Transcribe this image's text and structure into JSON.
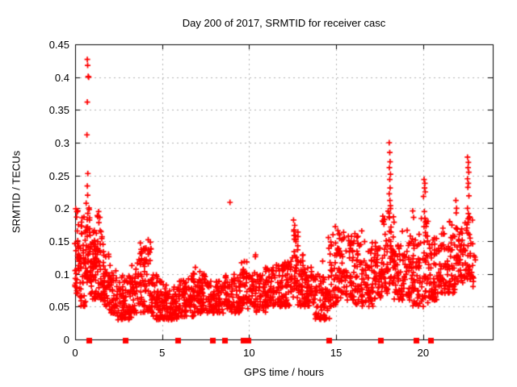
{
  "window": {
    "background": "#ffffff",
    "text_color": "#000000"
  },
  "chart_data": {
    "type": "scatter",
    "title": "Day 200 of 2017, SRMTID for receiver casc",
    "xlabel": "GPS time / hours",
    "ylabel": "SRMTID / TECUs",
    "xlim": [
      0,
      24
    ],
    "ylim": [
      0,
      0.45
    ],
    "xticks": [
      {
        "v": 0,
        "label": "0"
      },
      {
        "v": 5,
        "label": "5"
      },
      {
        "v": 10,
        "label": "10"
      },
      {
        "v": 15,
        "label": "15"
      },
      {
        "v": 20,
        "label": "20"
      }
    ],
    "yticks": [
      {
        "v": 0,
        "label": "0"
      },
      {
        "v": 0.05,
        "label": "0.05"
      },
      {
        "v": 0.1,
        "label": "0.1"
      },
      {
        "v": 0.15,
        "label": "0.15"
      },
      {
        "v": 0.2,
        "label": "0.2"
      },
      {
        "v": 0.25,
        "label": "0.25"
      },
      {
        "v": 0.3,
        "label": "0.3"
      },
      {
        "v": 0.35,
        "label": "0.35"
      },
      {
        "v": 0.4,
        "label": "0.4"
      },
      {
        "v": 0.45,
        "label": "0.45"
      }
    ],
    "grid": true,
    "grid_color": "#b0b0b0",
    "border_color": "#000000",
    "legend": "none",
    "marker": {
      "shape": "plus",
      "color": "#ff0000",
      "size": 7
    },
    "zero_marker": {
      "shape": "filled-square",
      "color": "#ff0000",
      "size": 7
    },
    "zero_points_x": [
      0.8,
      2.9,
      5.9,
      7.9,
      8.6,
      9.7,
      9.95,
      14.6,
      17.55,
      19.6,
      20.45
    ],
    "density_bins": [
      [
        0.0,
        0.3,
        0.07,
        0.2,
        42
      ],
      [
        0.3,
        0.6,
        0.05,
        0.19,
        38
      ],
      [
        0.6,
        0.9,
        0.08,
        0.21,
        45
      ],
      [
        0.9,
        1.2,
        0.06,
        0.17,
        42
      ],
      [
        1.2,
        1.6,
        0.06,
        0.19,
        48
      ],
      [
        1.6,
        2.0,
        0.05,
        0.13,
        42
      ],
      [
        2.0,
        2.4,
        0.04,
        0.11,
        40
      ],
      [
        2.4,
        2.8,
        0.03,
        0.1,
        40
      ],
      [
        2.8,
        3.2,
        0.03,
        0.1,
        40
      ],
      [
        3.2,
        3.6,
        0.04,
        0.12,
        40
      ],
      [
        3.6,
        4.0,
        0.04,
        0.14,
        38
      ],
      [
        4.0,
        4.4,
        0.04,
        0.15,
        38
      ],
      [
        4.4,
        4.8,
        0.03,
        0.1,
        40
      ],
      [
        4.8,
        5.2,
        0.03,
        0.09,
        40
      ],
      [
        5.2,
        5.6,
        0.03,
        0.08,
        40
      ],
      [
        5.6,
        6.0,
        0.03,
        0.08,
        40
      ],
      [
        6.0,
        6.4,
        0.035,
        0.09,
        40
      ],
      [
        6.4,
        6.8,
        0.035,
        0.1,
        40
      ],
      [
        6.8,
        7.2,
        0.04,
        0.11,
        40
      ],
      [
        7.2,
        7.6,
        0.04,
        0.11,
        40
      ],
      [
        7.6,
        8.0,
        0.04,
        0.09,
        40
      ],
      [
        8.0,
        8.5,
        0.04,
        0.09,
        42
      ],
      [
        8.5,
        9.0,
        0.045,
        0.1,
        42
      ],
      [
        9.0,
        9.5,
        0.04,
        0.1,
        42
      ],
      [
        9.5,
        10.0,
        0.045,
        0.12,
        42
      ],
      [
        10.0,
        10.4,
        0.05,
        0.13,
        36
      ],
      [
        10.4,
        10.9,
        0.04,
        0.1,
        42
      ],
      [
        10.9,
        11.4,
        0.05,
        0.11,
        44
      ],
      [
        11.4,
        11.9,
        0.05,
        0.12,
        46
      ],
      [
        11.9,
        12.4,
        0.05,
        0.12,
        46
      ],
      [
        12.4,
        12.8,
        0.06,
        0.17,
        40
      ],
      [
        12.8,
        13.2,
        0.05,
        0.13,
        42
      ],
      [
        13.2,
        13.7,
        0.05,
        0.11,
        42
      ],
      [
        13.7,
        14.2,
        0.03,
        0.1,
        40
      ],
      [
        14.2,
        14.6,
        0.03,
        0.12,
        36
      ],
      [
        14.6,
        15.1,
        0.05,
        0.16,
        46
      ],
      [
        15.1,
        15.6,
        0.06,
        0.17,
        46
      ],
      [
        15.6,
        16.1,
        0.06,
        0.16,
        46
      ],
      [
        16.1,
        16.6,
        0.05,
        0.17,
        46
      ],
      [
        16.6,
        17.1,
        0.05,
        0.14,
        46
      ],
      [
        17.1,
        17.6,
        0.06,
        0.15,
        46
      ],
      [
        17.6,
        18.0,
        0.07,
        0.19,
        40
      ],
      [
        18.0,
        18.3,
        0.08,
        0.2,
        34
      ],
      [
        18.3,
        18.8,
        0.06,
        0.16,
        46
      ],
      [
        18.8,
        19.3,
        0.06,
        0.17,
        46
      ],
      [
        19.3,
        19.8,
        0.05,
        0.16,
        46
      ],
      [
        19.8,
        20.3,
        0.05,
        0.19,
        46
      ],
      [
        20.3,
        20.8,
        0.06,
        0.16,
        46
      ],
      [
        20.8,
        21.3,
        0.07,
        0.17,
        46
      ],
      [
        21.3,
        21.8,
        0.07,
        0.18,
        46
      ],
      [
        21.8,
        22.3,
        0.08,
        0.17,
        46
      ],
      [
        22.3,
        22.8,
        0.09,
        0.19,
        40
      ],
      [
        22.8,
        23.0,
        0.08,
        0.13,
        8
      ]
    ],
    "outlier_points": [
      [
        0.7,
        0.427
      ],
      [
        0.72,
        0.418
      ],
      [
        0.75,
        0.401
      ],
      [
        0.78,
        0.4
      ],
      [
        0.7,
        0.362
      ],
      [
        0.68,
        0.312
      ],
      [
        0.73,
        0.253
      ],
      [
        0.7,
        0.234
      ],
      [
        0.72,
        0.22
      ],
      [
        1.35,
        0.195
      ],
      [
        1.42,
        0.186
      ],
      [
        3.75,
        0.147
      ],
      [
        4.2,
        0.152
      ],
      [
        8.9,
        0.209
      ],
      [
        12.55,
        0.182
      ],
      [
        12.62,
        0.174
      ],
      [
        12.58,
        0.167
      ],
      [
        14.95,
        0.172
      ],
      [
        15.1,
        0.166
      ],
      [
        18.05,
        0.3
      ],
      [
        18.08,
        0.285
      ],
      [
        18.1,
        0.271
      ],
      [
        18.06,
        0.262
      ],
      [
        18.12,
        0.252
      ],
      [
        18.08,
        0.244
      ],
      [
        18.1,
        0.231
      ],
      [
        18.05,
        0.222
      ],
      [
        18.09,
        0.212
      ],
      [
        18.12,
        0.204
      ],
      [
        19.4,
        0.196
      ],
      [
        19.45,
        0.186
      ],
      [
        20.05,
        0.244
      ],
      [
        20.1,
        0.238
      ],
      [
        20.08,
        0.231
      ],
      [
        20.12,
        0.225
      ],
      [
        20.02,
        0.218
      ],
      [
        20.07,
        0.195
      ],
      [
        20.1,
        0.185
      ],
      [
        20.05,
        0.172
      ],
      [
        20.13,
        0.163
      ],
      [
        21.88,
        0.212
      ],
      [
        21.92,
        0.2
      ],
      [
        21.9,
        0.193
      ],
      [
        22.55,
        0.278
      ],
      [
        22.6,
        0.27
      ],
      [
        22.58,
        0.262
      ],
      [
        22.62,
        0.255
      ],
      [
        22.55,
        0.245
      ],
      [
        22.6,
        0.238
      ],
      [
        22.57,
        0.232
      ],
      [
        22.63,
        0.219
      ],
      [
        22.55,
        0.2
      ],
      [
        22.6,
        0.192
      ],
      [
        22.58,
        0.184
      ],
      [
        22.52,
        0.17
      ],
      [
        22.65,
        0.16
      ]
    ]
  }
}
